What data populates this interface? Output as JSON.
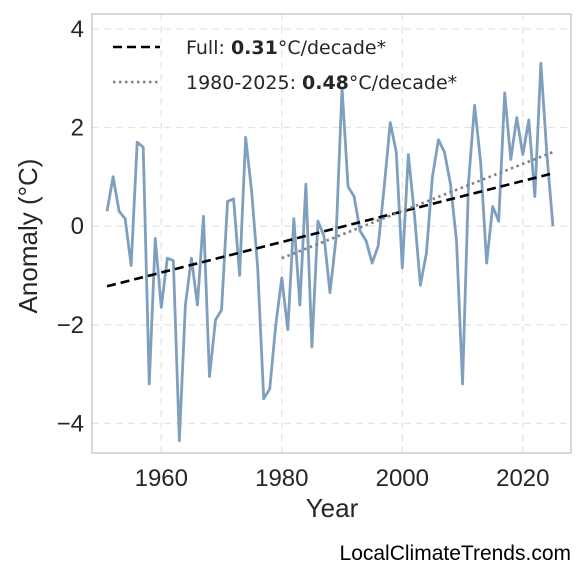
{
  "chart_data": {
    "type": "line",
    "xlabel": "Year",
    "ylabel": "Anomaly (°C)",
    "xlim": [
      1948.5,
      2028
    ],
    "ylim": [
      -4.6,
      4.3
    ],
    "xticks": [
      1960,
      1980,
      2000,
      2020
    ],
    "xtick_labels": [
      "1960",
      "1980",
      "2000",
      "2020"
    ],
    "yticks": [
      -4,
      -2,
      0,
      2,
      4
    ],
    "ytick_labels": [
      "−4",
      "−2",
      "0",
      "2",
      "4"
    ],
    "grid": true,
    "legend_position": "top-left",
    "series": [
      {
        "style": "solid",
        "color": "#7f9fbf",
        "x": [
          1951,
          1952,
          1953,
          1954,
          1955,
          1956,
          1957,
          1958,
          1959,
          1960,
          1961,
          1962,
          1963,
          1964,
          1965,
          1966,
          1967,
          1968,
          1969,
          1970,
          1971,
          1972,
          1973,
          1974,
          1975,
          1976,
          1977,
          1978,
          1979,
          1980,
          1981,
          1982,
          1983,
          1984,
          1985,
          1986,
          1987,
          1988,
          1989,
          1990,
          1991,
          1992,
          1993,
          1994,
          1995,
          1996,
          1997,
          1998,
          1999,
          2000,
          2001,
          2002,
          2003,
          2004,
          2005,
          2006,
          2007,
          2008,
          2009,
          2010,
          2011,
          2012,
          2013,
          2014,
          2015,
          2016,
          2017,
          2018,
          2019,
          2020,
          2021,
          2022,
          2023,
          2024,
          2025
        ],
        "y": [
          0.3,
          1.0,
          0.3,
          0.15,
          -0.8,
          1.7,
          1.6,
          -3.2,
          -0.25,
          -1.65,
          -0.65,
          -0.7,
          -4.35,
          -1.6,
          -0.65,
          -1.6,
          0.2,
          -3.05,
          -1.9,
          -1.7,
          0.5,
          0.55,
          -1.0,
          1.8,
          0.7,
          -0.85,
          -3.5,
          -3.3,
          -2.0,
          -1.05,
          -2.1,
          0.15,
          -1.6,
          0.85,
          -2.45,
          0.1,
          -0.2,
          -1.35,
          -0.25,
          2.8,
          0.8,
          0.6,
          -0.1,
          -0.3,
          -0.75,
          -0.4,
          0.8,
          2.1,
          1.5,
          -0.85,
          1.45,
          0.25,
          -1.2,
          -0.55,
          1.0,
          1.75,
          1.5,
          0.85,
          -0.3,
          -3.2,
          0.9,
          2.45,
          1.3,
          -0.75,
          0.4,
          0.1,
          2.7,
          1.35,
          2.2,
          1.45,
          2.15,
          0.6,
          3.3,
          1.45,
          0.0
        ]
      },
      {
        "style": "dashed",
        "color": "#000000",
        "x": [
          1951,
          2025
        ],
        "y": [
          -1.22,
          1.07
        ]
      },
      {
        "style": "dotted",
        "color": "#808080",
        "x": [
          1980,
          2025
        ],
        "y": [
          -0.65,
          1.5
        ]
      }
    ],
    "legend": [
      {
        "style": "dashed",
        "color": "#000000",
        "prefix": "Full: ",
        "value": "0.31",
        "suffix": "°C/decade*"
      },
      {
        "style": "dotted",
        "color": "#808080",
        "prefix": "1980-2025: ",
        "value": "0.48",
        "suffix": "°C/decade*"
      }
    ]
  },
  "watermark": "LocalClimateTrends.com"
}
